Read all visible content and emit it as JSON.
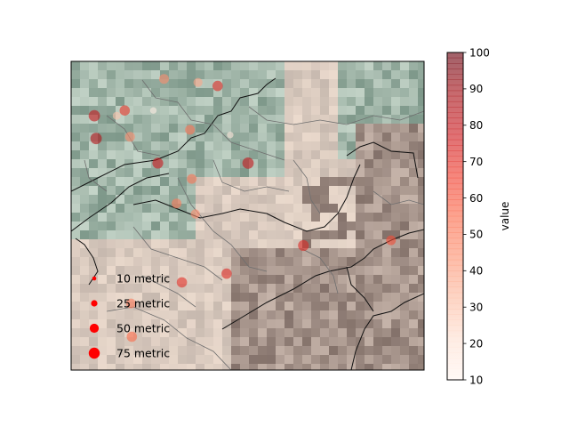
{
  "chart_data": {
    "type": "scatter",
    "title": "",
    "xlabel": "",
    "ylabel": "",
    "map": {
      "basemap": "shaded relief / land cover raster with administrative boundaries",
      "boundary_styles": {
        "national": "#111111",
        "regional": "#6f6f6f"
      }
    },
    "colorbar": {
      "label": "value",
      "range": [
        10,
        100
      ],
      "ticks": [
        10,
        20,
        30,
        40,
        50,
        60,
        70,
        80,
        90,
        100
      ],
      "cmap": "Reds",
      "alpha": 0.6
    },
    "size_legend": {
      "placement": "lower-left",
      "color": "#ff0000",
      "entries": [
        {
          "value": 10,
          "label": "10 metric"
        },
        {
          "value": 25,
          "label": "25 metric"
        },
        {
          "value": 50,
          "label": "50 metric"
        },
        {
          "value": 75,
          "label": "75 metric"
        }
      ]
    },
    "points": [
      {
        "lon": 7.64,
        "lat": 47.52,
        "value": 45,
        "size": 45
      },
      {
        "lon": 8.02,
        "lat": 47.5,
        "value": 38,
        "size": 38
      },
      {
        "lon": 8.24,
        "lat": 47.48,
        "value": 72,
        "size": 50
      },
      {
        "lon": 6.86,
        "lat": 47.31,
        "value": 80,
        "size": 60
      },
      {
        "lon": 7.2,
        "lat": 47.34,
        "value": 68,
        "size": 50
      },
      {
        "lon": 7.11,
        "lat": 47.31,
        "value": 30,
        "size": 30
      },
      {
        "lon": 7.52,
        "lat": 47.34,
        "value": 15,
        "size": 20
      },
      {
        "lon": 6.88,
        "lat": 47.18,
        "value": 85,
        "size": 60
      },
      {
        "lon": 7.26,
        "lat": 47.19,
        "value": 45,
        "size": 45
      },
      {
        "lon": 7.93,
        "lat": 47.23,
        "value": 52,
        "size": 45
      },
      {
        "lon": 8.38,
        "lat": 47.2,
        "value": 18,
        "size": 20
      },
      {
        "lon": 7.57,
        "lat": 47.04,
        "value": 78,
        "size": 55
      },
      {
        "lon": 8.58,
        "lat": 47.04,
        "value": 80,
        "size": 60
      },
      {
        "lon": 7.95,
        "lat": 46.95,
        "value": 52,
        "size": 45
      },
      {
        "lon": 7.78,
        "lat": 46.81,
        "value": 50,
        "size": 45
      },
      {
        "lon": 7.99,
        "lat": 46.75,
        "value": 45,
        "size": 40
      },
      {
        "lon": 9.2,
        "lat": 46.57,
        "value": 72,
        "size": 55
      },
      {
        "lon": 10.18,
        "lat": 46.6,
        "value": 62,
        "size": 45
      },
      {
        "lon": 8.34,
        "lat": 46.41,
        "value": 72,
        "size": 50
      },
      {
        "lon": 7.84,
        "lat": 46.36,
        "value": 70,
        "size": 50
      },
      {
        "lon": 7.27,
        "lat": 46.24,
        "value": 50,
        "size": 45
      },
      {
        "lon": 7.28,
        "lat": 46.05,
        "value": 55,
        "size": 50
      }
    ]
  }
}
